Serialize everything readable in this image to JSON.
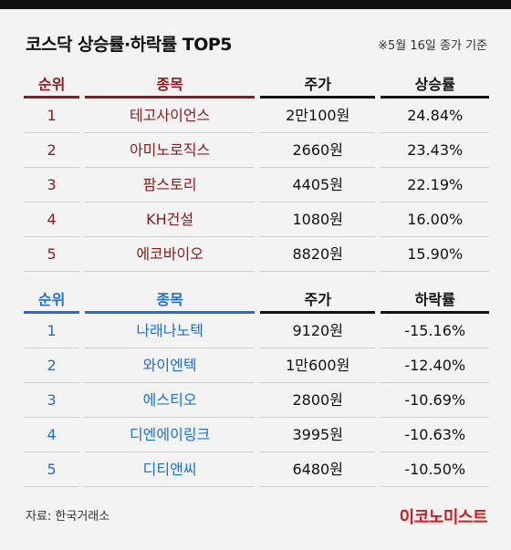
{
  "title": "코스닥 상승률·하락률 TOP5",
  "basis": "※5월 16일 종가 기준",
  "gainers": {
    "headers": [
      "순위",
      "종목",
      "주가",
      "상승률"
    ],
    "rows": [
      {
        "rank": "1",
        "name": "테고사이언스",
        "price": "2만100원",
        "rate": "24.84%"
      },
      {
        "rank": "2",
        "name": "아미노로직스",
        "price": "2660원",
        "rate": "23.43%"
      },
      {
        "rank": "3",
        "name": "팜스토리",
        "price": "4405원",
        "rate": "22.19%"
      },
      {
        "rank": "4",
        "name": "KH건설",
        "price": "1080원",
        "rate": "16.00%"
      },
      {
        "rank": "5",
        "name": "에코바이오",
        "price": "8820원",
        "rate": "15.90%"
      }
    ]
  },
  "losers": {
    "headers": [
      "순위",
      "종목",
      "주가",
      "하락률"
    ],
    "rows": [
      {
        "rank": "1",
        "name": "나래나노텍",
        "price": "9120원",
        "rate": "-15.16%"
      },
      {
        "rank": "2",
        "name": "와이엔텍",
        "price": "1만600원",
        "rate": "-12.40%"
      },
      {
        "rank": "3",
        "name": "에스티오",
        "price": "2800원",
        "rate": "-10.69%"
      },
      {
        "rank": "4",
        "name": "디엔에이링크",
        "price": "3995원",
        "rate": "-10.63%"
      },
      {
        "rank": "5",
        "name": "디티앤씨",
        "price": "6480원",
        "rate": "-10.50%"
      }
    ]
  },
  "source": "자료: 한국거래소",
  "logo": "이코노미스트",
  "colors": {
    "gain": "#8b1a1a",
    "loss": "#1f6fd1",
    "logo": "#d11a1a"
  }
}
